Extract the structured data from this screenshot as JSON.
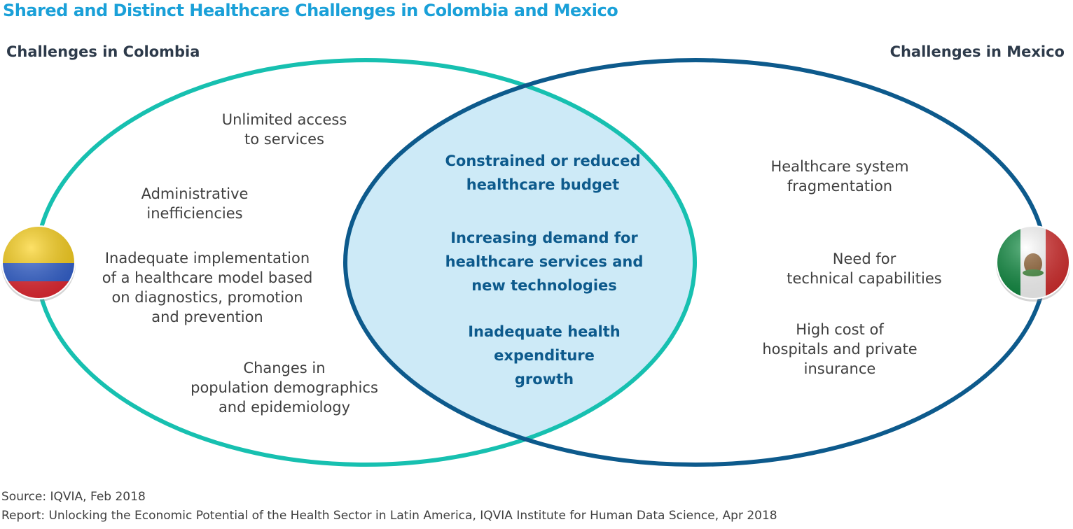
{
  "title": "Shared and Distinct Healthcare Challenges in Colombia and Mexico",
  "colombia": {
    "heading": "Challenges in Colombia",
    "flag_icon": "colombia-flag-icon",
    "color": "#17c0b0",
    "items": [
      "Unlimited access\nto services",
      "Administrative\ninefficiencies",
      "Inadequate implementation\nof a healthcare model based\non diagnostics, promotion\nand prevention",
      "Changes in\npopulation demographics\nand epidemiology"
    ]
  },
  "mexico": {
    "heading": "Challenges in Mexico",
    "flag_icon": "mexico-flag-icon",
    "color": "#0d5a8c",
    "items": [
      "Healthcare system\nfragmentation",
      "Need for\ntechnical capabilities",
      "High cost of\nhospitals and private\ninsurance"
    ]
  },
  "shared": {
    "fill": "#cdeaf7",
    "items": [
      "Constrained or reduced\nhealthcare budget",
      "Increasing demand for\nhealthcare services and\nnew technologies",
      "Inadequate health\nexpenditure\ngrowth"
    ]
  },
  "footer": {
    "source": "Source: IQVIA, Feb 2018",
    "report": "Report: Unlocking the Economic Potential of the Health Sector in Latin America, IQVIA Institute for Human Data Science, Apr 2018"
  }
}
